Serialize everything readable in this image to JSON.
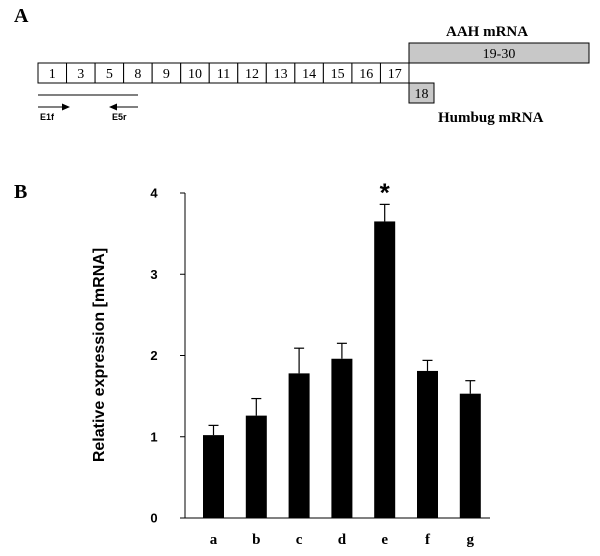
{
  "panels": {
    "a_letter": "A",
    "b_letter": "B"
  },
  "gene_diagram": {
    "main_exons": [
      "1",
      "3",
      "5",
      "8",
      "9",
      "10",
      "11",
      "12",
      "13",
      "14",
      "15",
      "16",
      "17"
    ],
    "aah_label": "AAH mRNA",
    "aah_exons": "19-30",
    "humbug_label": "Humbug mRNA",
    "humbug_exon": "18",
    "primer_forward": "E1f",
    "primer_reverse": "E5r",
    "box_fill": "#c8c8c8"
  },
  "chart_data": {
    "type": "bar",
    "categories": [
      "a",
      "b",
      "c",
      "d",
      "e",
      "f",
      "g"
    ],
    "values": [
      1.02,
      1.26,
      1.78,
      1.96,
      3.65,
      1.81,
      1.53
    ],
    "errors": [
      0.12,
      0.21,
      0.31,
      0.19,
      0.21,
      0.13,
      0.16
    ],
    "title": "",
    "xlabel": "",
    "ylabel": "Relative expression [mRNA]",
    "ylim": [
      0,
      4
    ],
    "yticks": [
      "0",
      "1",
      "2",
      "3",
      "4"
    ],
    "annotations": [
      {
        "category": "e",
        "text": "*"
      }
    ],
    "bar_color": "#000000"
  }
}
